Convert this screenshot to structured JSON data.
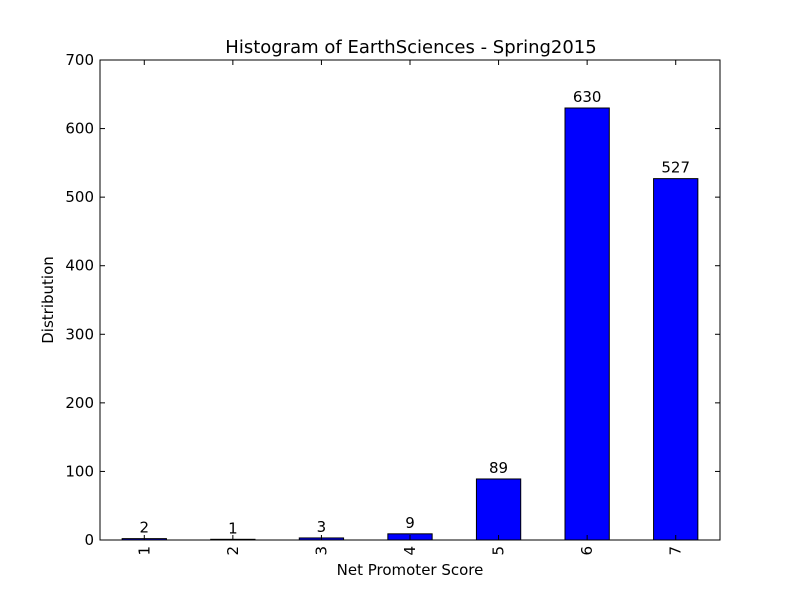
{
  "chart_data": {
    "type": "bar",
    "title": "Histogram of EarthSciences - Spring2015",
    "xlabel": "Net Promoter Score",
    "ylabel": "Distribution",
    "categories": [
      "1",
      "2",
      "3",
      "4",
      "5",
      "6",
      "7"
    ],
    "values": [
      2,
      1,
      3,
      9,
      89,
      630,
      527
    ],
    "data_labels": [
      "2",
      "1",
      "3",
      "9",
      "89",
      "630",
      "527"
    ],
    "ylim": [
      0,
      700
    ],
    "yticks": [
      0,
      100,
      200,
      300,
      400,
      500,
      600,
      700
    ],
    "ytick_labels": [
      "0",
      "100",
      "200",
      "300",
      "400",
      "500",
      "600",
      "700"
    ],
    "grid": false,
    "legend": "none",
    "bar_color": "#0000ff",
    "edge_color": "#000000"
  }
}
